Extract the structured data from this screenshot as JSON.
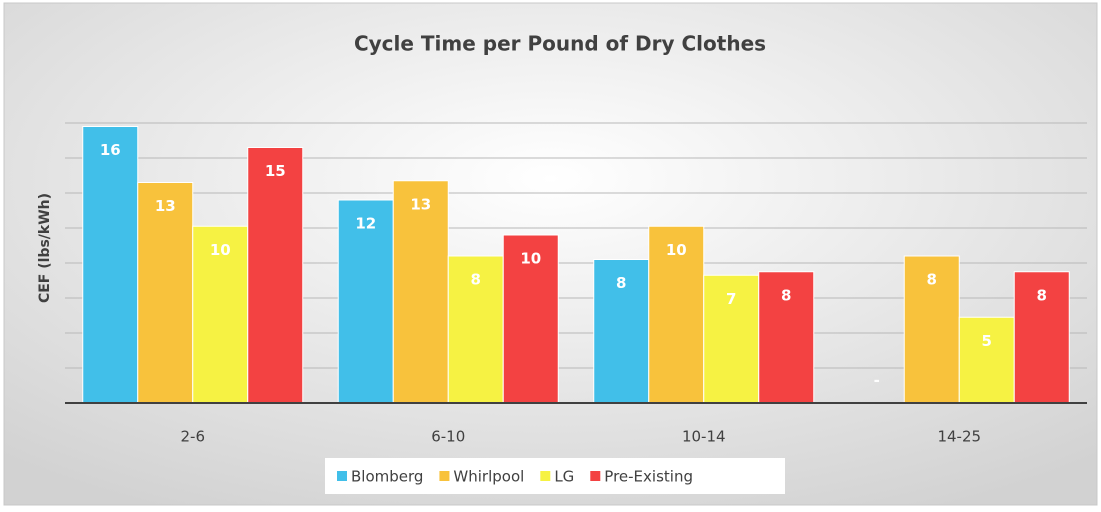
{
  "chart_data": {
    "type": "bar",
    "title": "Cycle Time per Pound of Dry Clothes",
    "y_label": "CEF (lbs/kWh)",
    "categories": [
      "2-6",
      "6-10",
      "10-14",
      "14-25"
    ],
    "series": [
      {
        "name": "Blomberg",
        "color": "#41bfe9",
        "values": [
          15.8,
          11.6,
          8.2,
          0
        ],
        "value_labels": [
          "16",
          "12",
          "8",
          "-"
        ]
      },
      {
        "name": "Whirlpool",
        "color": "#f8c23c",
        "values": [
          12.6,
          12.7,
          10.1,
          8.4
        ],
        "value_labels": [
          "13",
          "13",
          "10",
          "8"
        ]
      },
      {
        "name": "LG",
        "color": "#f6f243",
        "values": [
          10.1,
          8.4,
          7.3,
          4.9
        ],
        "value_labels": [
          "10",
          "8",
          "7",
          "5"
        ]
      },
      {
        "name": "Pre-Existing",
        "color": "#f34242",
        "values": [
          14.6,
          9.6,
          7.5,
          7.5
        ],
        "value_labels": [
          "15",
          "10",
          "8",
          "8"
        ]
      }
    ],
    "ylim": [
      0,
      18
    ],
    "yticks": [
      0,
      2,
      4,
      6,
      8,
      10,
      12,
      14,
      16
    ],
    "grid": true,
    "legend": "bottom"
  }
}
